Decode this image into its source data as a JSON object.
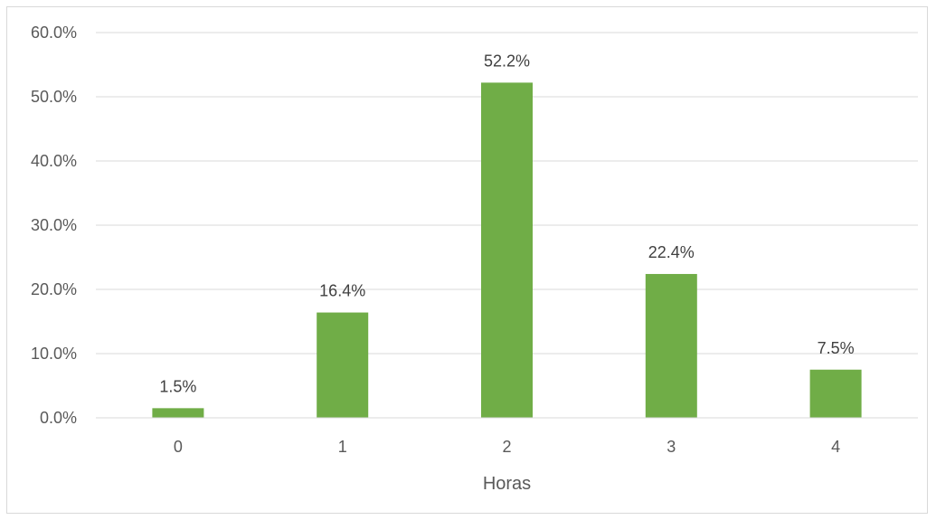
{
  "chart_data": {
    "type": "bar",
    "categories": [
      "0",
      "1",
      "2",
      "3",
      "4"
    ],
    "values": [
      1.5,
      16.4,
      52.2,
      22.4,
      7.5
    ],
    "data_labels": [
      "1.5%",
      "16.4%",
      "52.2%",
      "22.4%",
      "7.5%"
    ],
    "xlabel": "Horas",
    "ylabel": "",
    "ylim": [
      0,
      60
    ],
    "y_ticks": [
      0,
      10,
      20,
      30,
      40,
      50,
      60
    ],
    "y_tick_labels": [
      "0.0%",
      "10.0%",
      "20.0%",
      "30.0%",
      "40.0%",
      "50.0%",
      "60.0%"
    ],
    "grid": true,
    "legend": "none",
    "colors": {
      "bar": "#70ad47",
      "grid": "#d9d9d9",
      "axis": "#d9d9d9"
    }
  }
}
